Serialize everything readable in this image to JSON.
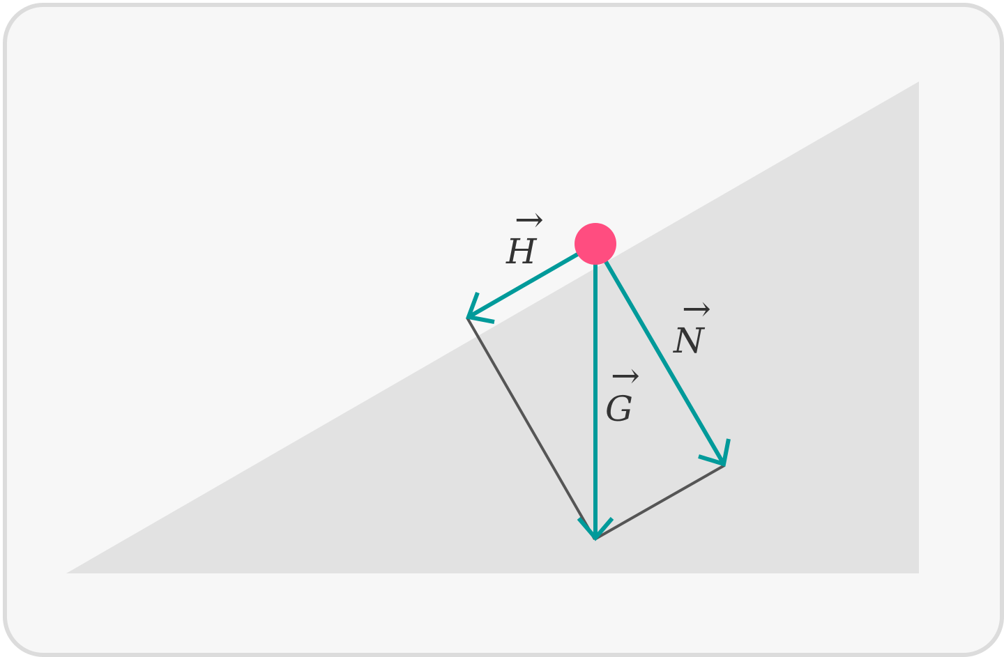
{
  "colors": {
    "background": "#f7f7f7",
    "frame_border": "#dcdcdc",
    "incline": "#e2e2e2",
    "vector": "#009a9a",
    "construction": "#555555",
    "particle": "#ff4d80",
    "label": "#333333"
  },
  "vectors": [
    {
      "id": "H",
      "label": "H",
      "arrow": "→",
      "role": "component-along-incline"
    },
    {
      "id": "G",
      "label": "G",
      "arrow": "→",
      "role": "weight"
    },
    {
      "id": "N",
      "label": "N",
      "arrow": "→",
      "role": "component-perpendicular-to-incline"
    }
  ]
}
